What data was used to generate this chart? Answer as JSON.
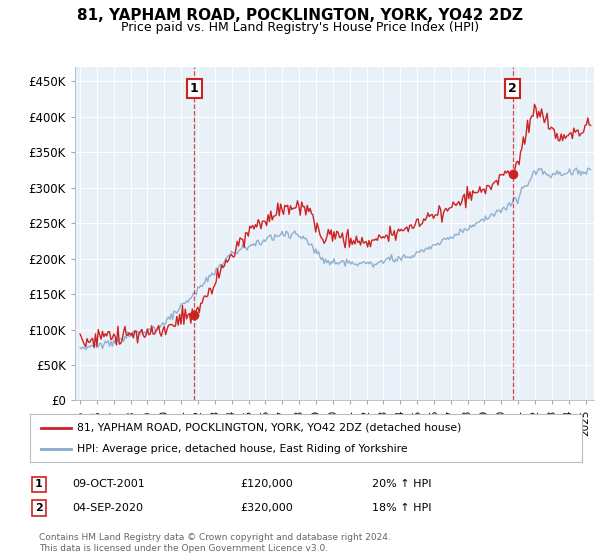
{
  "title": "81, YAPHAM ROAD, POCKLINGTON, YORK, YO42 2DZ",
  "subtitle": "Price paid vs. HM Land Registry's House Price Index (HPI)",
  "ylabel_ticks": [
    "£0",
    "£50K",
    "£100K",
    "£150K",
    "£200K",
    "£250K",
    "£300K",
    "£350K",
    "£400K",
    "£450K"
  ],
  "ytick_values": [
    0,
    50000,
    100000,
    150000,
    200000,
    250000,
    300000,
    350000,
    400000,
    450000
  ],
  "ylim": [
    0,
    470000
  ],
  "xlim_start": 1994.7,
  "xlim_end": 2025.5,
  "sale1_x": 2001.77,
  "sale1_y": 120000,
  "sale1_date": "09-OCT-2001",
  "sale1_price_str": "£120,000",
  "sale1_hpi": "20% ↑ HPI",
  "sale2_x": 2020.67,
  "sale2_y": 320000,
  "sale2_date": "04-SEP-2020",
  "sale2_price_str": "£320,000",
  "sale2_hpi": "18% ↑ HPI",
  "line_color_red": "#cc2222",
  "line_color_blue": "#88aacc",
  "chart_bg": "#e8f0f8",
  "background_color": "#ffffff",
  "grid_color": "#ffffff",
  "legend1": "81, YAPHAM ROAD, POCKLINGTON, YORK, YO42 2DZ (detached house)",
  "legend2": "HPI: Average price, detached house, East Riding of Yorkshire",
  "footer1": "Contains HM Land Registry data © Crown copyright and database right 2024.",
  "footer2": "This data is licensed under the Open Government Licence v3.0.",
  "xtick_years": [
    1995,
    1996,
    1997,
    1998,
    1999,
    2000,
    2001,
    2002,
    2003,
    2004,
    2005,
    2006,
    2007,
    2008,
    2009,
    2010,
    2011,
    2012,
    2013,
    2014,
    2015,
    2016,
    2017,
    2018,
    2019,
    2020,
    2021,
    2022,
    2023,
    2024,
    2025
  ]
}
